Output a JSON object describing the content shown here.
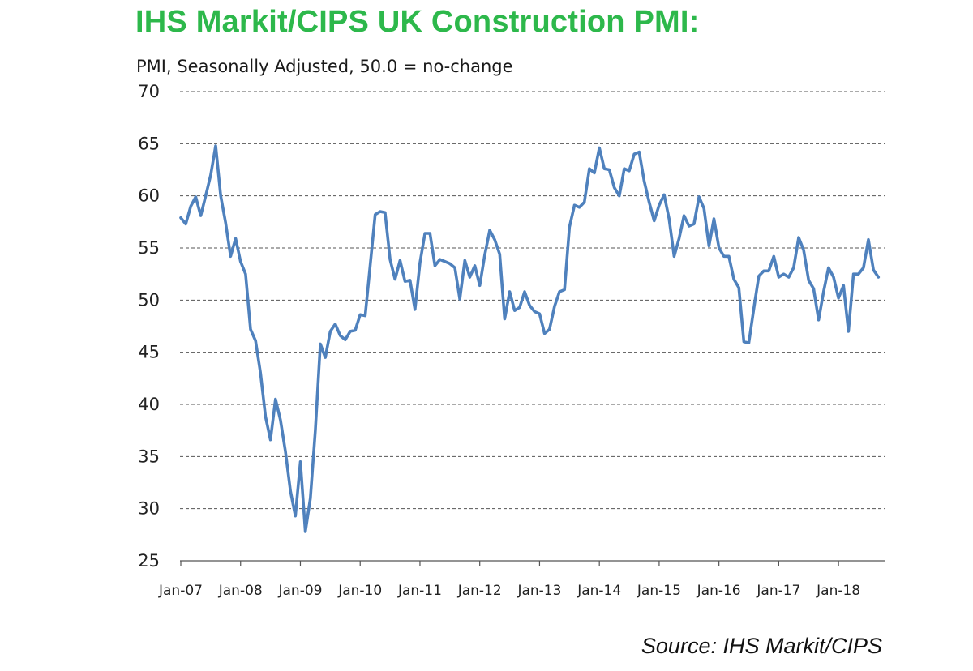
{
  "header": {
    "title": "IHS Markit/CIPS UK Construction PMI:",
    "subtitle": "PMI, Seasonally Adjusted, 50.0 = no-change"
  },
  "footer": {
    "source": "Source: IHS Markit/CIPS"
  },
  "colors": {
    "title": "#2db84b",
    "series": "#4f81bd",
    "grid": "#555555"
  },
  "chart_data": {
    "type": "line",
    "title": "IHS Markit/CIPS UK Construction PMI:",
    "ylabel": "PMI, Seasonally Adjusted, 50.0 = no-change",
    "xlabel": "",
    "ylim": [
      25,
      70
    ],
    "yticks": [
      "25",
      "30",
      "35",
      "40",
      "45",
      "50",
      "55",
      "60",
      "65",
      "70"
    ],
    "xticks": [
      "Jan-07",
      "Jan-08",
      "Jan-09",
      "Jan-10",
      "Jan-11",
      "Jan-12",
      "Jan-13",
      "Jan-14",
      "Jan-15",
      "Jan-16",
      "Jan-17",
      "Jan-18"
    ],
    "grid": "horizontal dashed",
    "legend": "none",
    "x_start": "Jan-07",
    "frequency": "monthly",
    "series": [
      {
        "values": [
          57.9,
          57.3,
          59.0,
          59.9,
          58.1,
          60.0,
          62.0,
          64.8,
          60.0,
          57.4,
          54.2,
          55.9,
          53.7,
          52.5,
          47.2,
          46.1,
          43.0,
          38.8,
          36.6,
          40.5,
          38.5,
          35.5,
          31.7,
          29.3,
          34.5,
          27.8,
          31.0,
          37.5,
          45.8,
          44.5,
          47.0,
          47.7,
          46.6,
          46.2,
          47.0,
          47.1,
          48.6,
          48.5,
          53.3,
          58.2,
          58.5,
          58.4,
          53.9,
          52.0,
          53.8,
          51.8,
          51.9,
          49.1,
          53.6,
          56.4,
          56.4,
          53.3,
          53.9,
          53.7,
          53.5,
          53.1,
          50.1,
          53.8,
          52.2,
          53.3,
          51.4,
          54.3,
          56.7,
          55.8,
          54.4,
          48.2,
          50.8,
          49.0,
          49.3,
          50.8,
          49.5,
          48.9,
          48.7,
          46.8,
          47.2,
          49.4,
          50.8,
          51.0,
          57.0,
          59.1,
          58.9,
          59.4,
          62.6,
          62.2,
          64.6,
          62.6,
          62.5,
          60.8,
          60.0,
          62.6,
          62.4,
          64.0,
          64.2,
          61.4,
          59.4,
          57.6,
          59.1,
          60.1,
          57.8,
          54.2,
          55.9,
          58.1,
          57.1,
          57.3,
          59.9,
          58.8,
          55.2,
          57.8,
          55.0,
          54.2,
          54.2,
          52.0,
          51.2,
          46.0,
          45.9,
          49.2,
          52.3,
          52.8,
          52.8,
          54.2,
          52.2,
          52.5,
          52.2,
          53.1,
          56.0,
          54.8,
          51.9,
          51.1,
          48.1,
          50.8,
          53.1,
          52.2,
          50.2,
          51.4,
          47.0,
          52.5,
          52.5,
          53.1,
          55.8,
          52.9,
          52.2
        ]
      }
    ]
  }
}
